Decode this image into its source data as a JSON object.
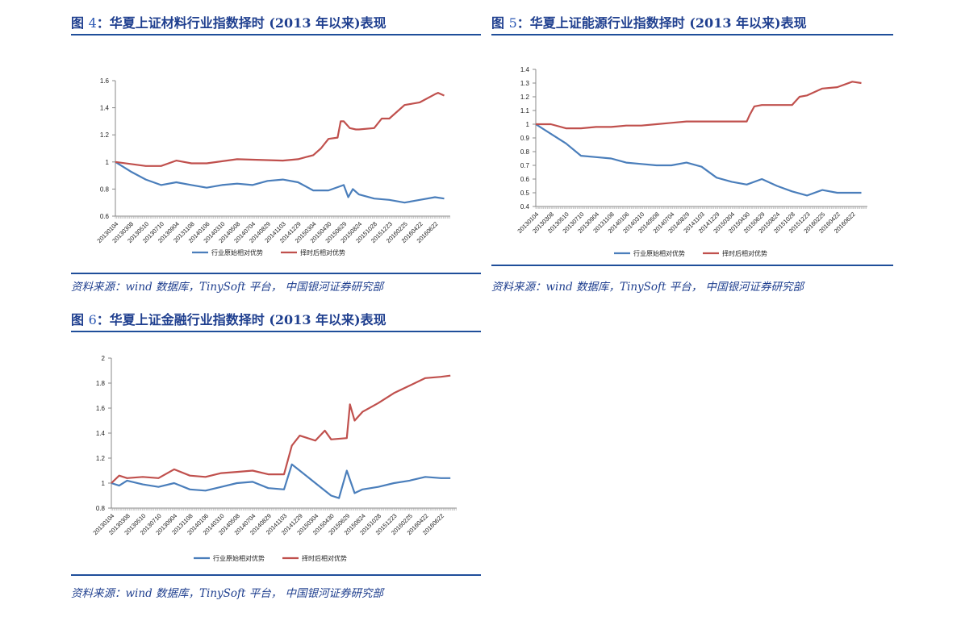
{
  "charts": [
    {
      "title_prefix": "图",
      "title_num": "4",
      "title_text": "：华夏上证材料行业指数择时 (2013 年以来)表现",
      "source": "资料来源：wind 数据库，TinySoft 平台， 中国银河证券研究部",
      "chart_data": {
        "type": "line",
        "title": "",
        "xlabel": "",
        "ylabel": "",
        "ylim": [
          0.6,
          1.6
        ],
        "yticks": [
          0.6,
          0.8,
          1,
          1.2,
          1.4,
          1.6
        ],
        "xtick_labels": [
          "20130104",
          "20130308",
          "20130510",
          "20130710",
          "20130904",
          "20131108",
          "20140106",
          "20140310",
          "20140508",
          "20140704",
          "20140829",
          "20141103",
          "20141229",
          "20150304",
          "20150430",
          "20150629",
          "20150824",
          "20151028",
          "20151223",
          "20160225",
          "20160422",
          "20160622"
        ],
        "legend": "bottom",
        "grid": false,
        "series": [
          {
            "name": "行业原始相对优势",
            "color": "#4a7ebb",
            "x": [
              0,
              1,
              2,
              3,
              4,
              5,
              6,
              7,
              8,
              9,
              10,
              11,
              12,
              13,
              14,
              15,
              15.3,
              15.6,
              16,
              17,
              18,
              19,
              20,
              21,
              21.6
            ],
            "values": [
              1.0,
              0.93,
              0.87,
              0.83,
              0.85,
              0.83,
              0.81,
              0.83,
              0.84,
              0.83,
              0.86,
              0.87,
              0.85,
              0.79,
              0.79,
              0.83,
              0.74,
              0.8,
              0.76,
              0.73,
              0.72,
              0.7,
              0.72,
              0.74,
              0.73
            ]
          },
          {
            "name": "择时后相对优势",
            "color": "#c0504d",
            "x": [
              0,
              2,
              3,
              4,
              5,
              6,
              8,
              11,
              12,
              13,
              13.5,
              14,
              14.6,
              14.8,
              15,
              15.4,
              15.8,
              16,
              17,
              17.5,
              18,
              19,
              19.5,
              20,
              21,
              21.2,
              21.6
            ],
            "values": [
              1.0,
              0.97,
              0.97,
              1.01,
              0.99,
              0.99,
              1.02,
              1.01,
              1.02,
              1.05,
              1.1,
              1.17,
              1.18,
              1.3,
              1.3,
              1.25,
              1.24,
              1.24,
              1.25,
              1.32,
              1.32,
              1.42,
              1.43,
              1.44,
              1.5,
              1.51,
              1.49
            ]
          }
        ]
      }
    },
    {
      "title_prefix": "图",
      "title_num": "5",
      "title_text": "：华夏上证能源行业指数择时 (2013 年以来)表现",
      "source": "资料来源：wind 数据库，TinySoft 平台， 中国银河证券研究部",
      "chart_data": {
        "type": "line",
        "title": "",
        "xlabel": "",
        "ylabel": "",
        "ylim": [
          0.4,
          1.4
        ],
        "yticks": [
          0.4,
          0.5,
          0.6,
          0.7,
          0.8,
          0.9,
          1,
          1.1,
          1.2,
          1.3,
          1.4
        ],
        "xtick_labels": [
          "20130104",
          "20130308",
          "20130510",
          "20130710",
          "20130904",
          "20131108",
          "20140106",
          "20140310",
          "20140508",
          "20140704",
          "20140829",
          "20141103",
          "20141229",
          "20150304",
          "20150430",
          "20150629",
          "20150824",
          "20151028",
          "20151223",
          "20160225",
          "20160422",
          "20160622"
        ],
        "legend": "bottom",
        "grid": false,
        "series": [
          {
            "name": "行业原始相对优势",
            "color": "#4a7ebb",
            "x": [
              0,
              1,
              2,
              3,
              4,
              5,
              6,
              7,
              8,
              9,
              10,
              11,
              12,
              13,
              14,
              15,
              16,
              17,
              18,
              19,
              20,
              21,
              21.6
            ],
            "values": [
              1.0,
              0.93,
              0.86,
              0.77,
              0.76,
              0.75,
              0.72,
              0.71,
              0.7,
              0.7,
              0.72,
              0.69,
              0.61,
              0.58,
              0.56,
              0.6,
              0.55,
              0.51,
              0.48,
              0.52,
              0.5,
              0.5,
              0.5
            ]
          },
          {
            "name": "择时后相对优势",
            "color": "#c0504d",
            "x": [
              0,
              1,
              2,
              3,
              4,
              5,
              6,
              7,
              8,
              9,
              10,
              11,
              12,
              13,
              14,
              14.2,
              14.5,
              15,
              16,
              17,
              17.5,
              18,
              19,
              20,
              21,
              21.6
            ],
            "values": [
              1.0,
              1.0,
              0.97,
              0.97,
              0.98,
              0.98,
              0.99,
              0.99,
              1.0,
              1.01,
              1.02,
              1.02,
              1.02,
              1.02,
              1.02,
              1.07,
              1.13,
              1.14,
              1.14,
              1.14,
              1.2,
              1.21,
              1.26,
              1.27,
              1.31,
              1.3
            ]
          }
        ]
      }
    },
    {
      "title_prefix": "图",
      "title_num": "6",
      "title_text": "：华夏上证金融行业指数择时 (2013 年以来)表现",
      "source": "资料来源：wind 数据库，TinySoft 平台， 中国银河证券研究部",
      "chart_data": {
        "type": "line",
        "title": "",
        "xlabel": "",
        "ylabel": "",
        "ylim": [
          0.8,
          2.0
        ],
        "yticks": [
          0.8,
          1,
          1.2,
          1.4,
          1.6,
          1.8,
          2
        ],
        "xtick_labels": [
          "20130104",
          "20130308",
          "20130510",
          "20130710",
          "20130904",
          "20131108",
          "20140106",
          "20140310",
          "20140508",
          "20140704",
          "20140829",
          "20141103",
          "20141229",
          "20150304",
          "20150430",
          "20150629",
          "20150824",
          "20151028",
          "20151223",
          "20160225",
          "20160422",
          "20160622"
        ],
        "legend": "bottom",
        "grid": false,
        "series": [
          {
            "name": "行业原始相对优势",
            "color": "#4a7ebb",
            "x": [
              0,
              0.5,
              1,
              2,
              3,
              4,
              5,
              6,
              7,
              8,
              9,
              10,
              11,
              11.5,
              12,
              13,
              14,
              14.5,
              15,
              15.5,
              16,
              17,
              18,
              19,
              20,
              21,
              21.6
            ],
            "values": [
              1.0,
              0.98,
              1.02,
              0.99,
              0.97,
              1.0,
              0.95,
              0.94,
              0.97,
              1.0,
              1.01,
              0.96,
              0.95,
              1.15,
              1.1,
              1.0,
              0.9,
              0.88,
              1.1,
              0.92,
              0.95,
              0.97,
              1.0,
              1.02,
              1.05,
              1.04,
              1.04
            ]
          },
          {
            "name": "择时后相对优势",
            "color": "#c0504d",
            "x": [
              0,
              0.5,
              1,
              2,
              3,
              4,
              5,
              6,
              7,
              8,
              9,
              10,
              11,
              11.5,
              12,
              13,
              13.6,
              14,
              15,
              15.2,
              15.5,
              16,
              17,
              18,
              19,
              20,
              21,
              21.6
            ],
            "values": [
              1.0,
              1.06,
              1.04,
              1.05,
              1.04,
              1.11,
              1.06,
              1.05,
              1.08,
              1.09,
              1.1,
              1.07,
              1.07,
              1.3,
              1.38,
              1.34,
              1.42,
              1.35,
              1.36,
              1.63,
              1.5,
              1.57,
              1.64,
              1.72,
              1.78,
              1.84,
              1.85,
              1.86
            ]
          }
        ]
      }
    }
  ]
}
